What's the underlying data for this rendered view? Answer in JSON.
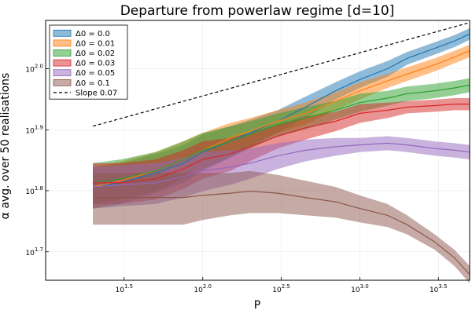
{
  "chart_data": {
    "type": "line",
    "title": "Departure from powerlaw regime [d=10]",
    "xlabel": "P",
    "ylabel": "α avg. over 50 realisations",
    "x_scale": "log10",
    "y_scale": "log10",
    "xlim": [
      10.0,
      5000.0
    ],
    "ylim": [
      45.0,
      120.0
    ],
    "x_ticks": [
      {
        "value": 31.6,
        "base": "10",
        "exp": "1.5"
      },
      {
        "value": 100,
        "base": "10",
        "exp": "2.0"
      },
      {
        "value": 316.2,
        "base": "10",
        "exp": "2.5"
      },
      {
        "value": 1000,
        "base": "10",
        "exp": "3.0"
      },
      {
        "value": 3162.3,
        "base": "10",
        "exp": "3.5"
      }
    ],
    "y_ticks": [
      {
        "value": 50.1,
        "base": "10",
        "exp": "1.7"
      },
      {
        "value": 63.1,
        "base": "10",
        "exp": "1.8"
      },
      {
        "value": 79.4,
        "base": "10",
        "exp": "1.9"
      },
      {
        "value": 100,
        "base": "10",
        "exp": "2.0"
      }
    ],
    "grid": true,
    "legend_position": "top-left",
    "x": [
      20,
      30,
      50,
      75,
      100,
      150,
      200,
      300,
      450,
      700,
      1000,
      1500,
      2000,
      3000,
      4000,
      5000
    ],
    "series": [
      {
        "name": "Δ0 = 0.0",
        "color": "#1f77b4",
        "values": [
          64,
          65,
          67.5,
          70,
          73,
          76,
          78.5,
          82,
          86.5,
          92,
          96,
          100,
          104,
          108,
          111,
          114
        ],
        "band": [
          5,
          5,
          5,
          5,
          5,
          4.5,
          4,
          3.5,
          3.5,
          3,
          3,
          3,
          2.5,
          2.5,
          2.5,
          2.5
        ]
      },
      {
        "name": "Δ0 = 0.01",
        "color": "#ff7f0e",
        "values": [
          64,
          65.5,
          68,
          71,
          73.5,
          77,
          79,
          82,
          84.5,
          88.5,
          92,
          95.5,
          98,
          101.5,
          104.5,
          107
        ],
        "band": [
          5,
          5,
          5,
          5,
          5,
          4.5,
          4,
          3.5,
          3.5,
          3,
          3,
          2.5,
          2.5,
          2.5,
          2.5,
          2.5
        ]
      },
      {
        "name": "Δ0 = 0.02",
        "color": "#2ca02c",
        "values": [
          65,
          66,
          68,
          71,
          73.5,
          76,
          78,
          81,
          83,
          85.5,
          88,
          89.5,
          91,
          92,
          93,
          94
        ],
        "band": [
          5,
          5,
          5,
          5,
          5,
          4.5,
          4,
          3.5,
          3.5,
          3,
          3,
          2.5,
          2.5,
          2.5,
          2.5,
          2.5
        ]
      },
      {
        "name": "Δ0 = 0.03",
        "color": "#d62728",
        "values": [
          65,
          65,
          66,
          68.5,
          71,
          72.5,
          74.5,
          77.5,
          80,
          82,
          84.5,
          85.5,
          86.5,
          87,
          87.5,
          87.5
        ],
        "band": [
          5,
          5,
          5,
          5,
          5,
          4.5,
          4,
          3.5,
          3.5,
          3,
          3,
          2.5,
          2,
          2,
          2,
          2
        ]
      },
      {
        "name": "Δ0 = 0.05",
        "color": "#9467bd",
        "values": [
          64,
          64.5,
          65,
          66.5,
          68,
          69,
          70,
          72,
          73.5,
          74.5,
          75,
          75.5,
          75,
          74,
          73.5,
          73
        ],
        "band": [
          5,
          5,
          5,
          5,
          5,
          4.5,
          4,
          3.5,
          3,
          2.5,
          2,
          2,
          2,
          2,
          2,
          2
        ]
      },
      {
        "name": "Δ0 = 0.1",
        "color": "#8c564b",
        "values": [
          61.5,
          61.5,
          61.5,
          61.5,
          62,
          62.5,
          63,
          62.5,
          61.5,
          60.5,
          59,
          57.5,
          55.5,
          52,
          49,
          46
        ],
        "band": [
          6,
          6,
          6,
          6,
          5.5,
          5,
          5,
          4.5,
          4,
          3.5,
          3,
          2.5,
          2,
          1.5,
          1.5,
          1.5
        ]
      }
    ],
    "reference_line": {
      "name": "Slope 0.07",
      "color": "#000000",
      "style": "dashed",
      "x": [
        20,
        5000
      ],
      "values": [
        80.5,
        119
      ]
    }
  }
}
